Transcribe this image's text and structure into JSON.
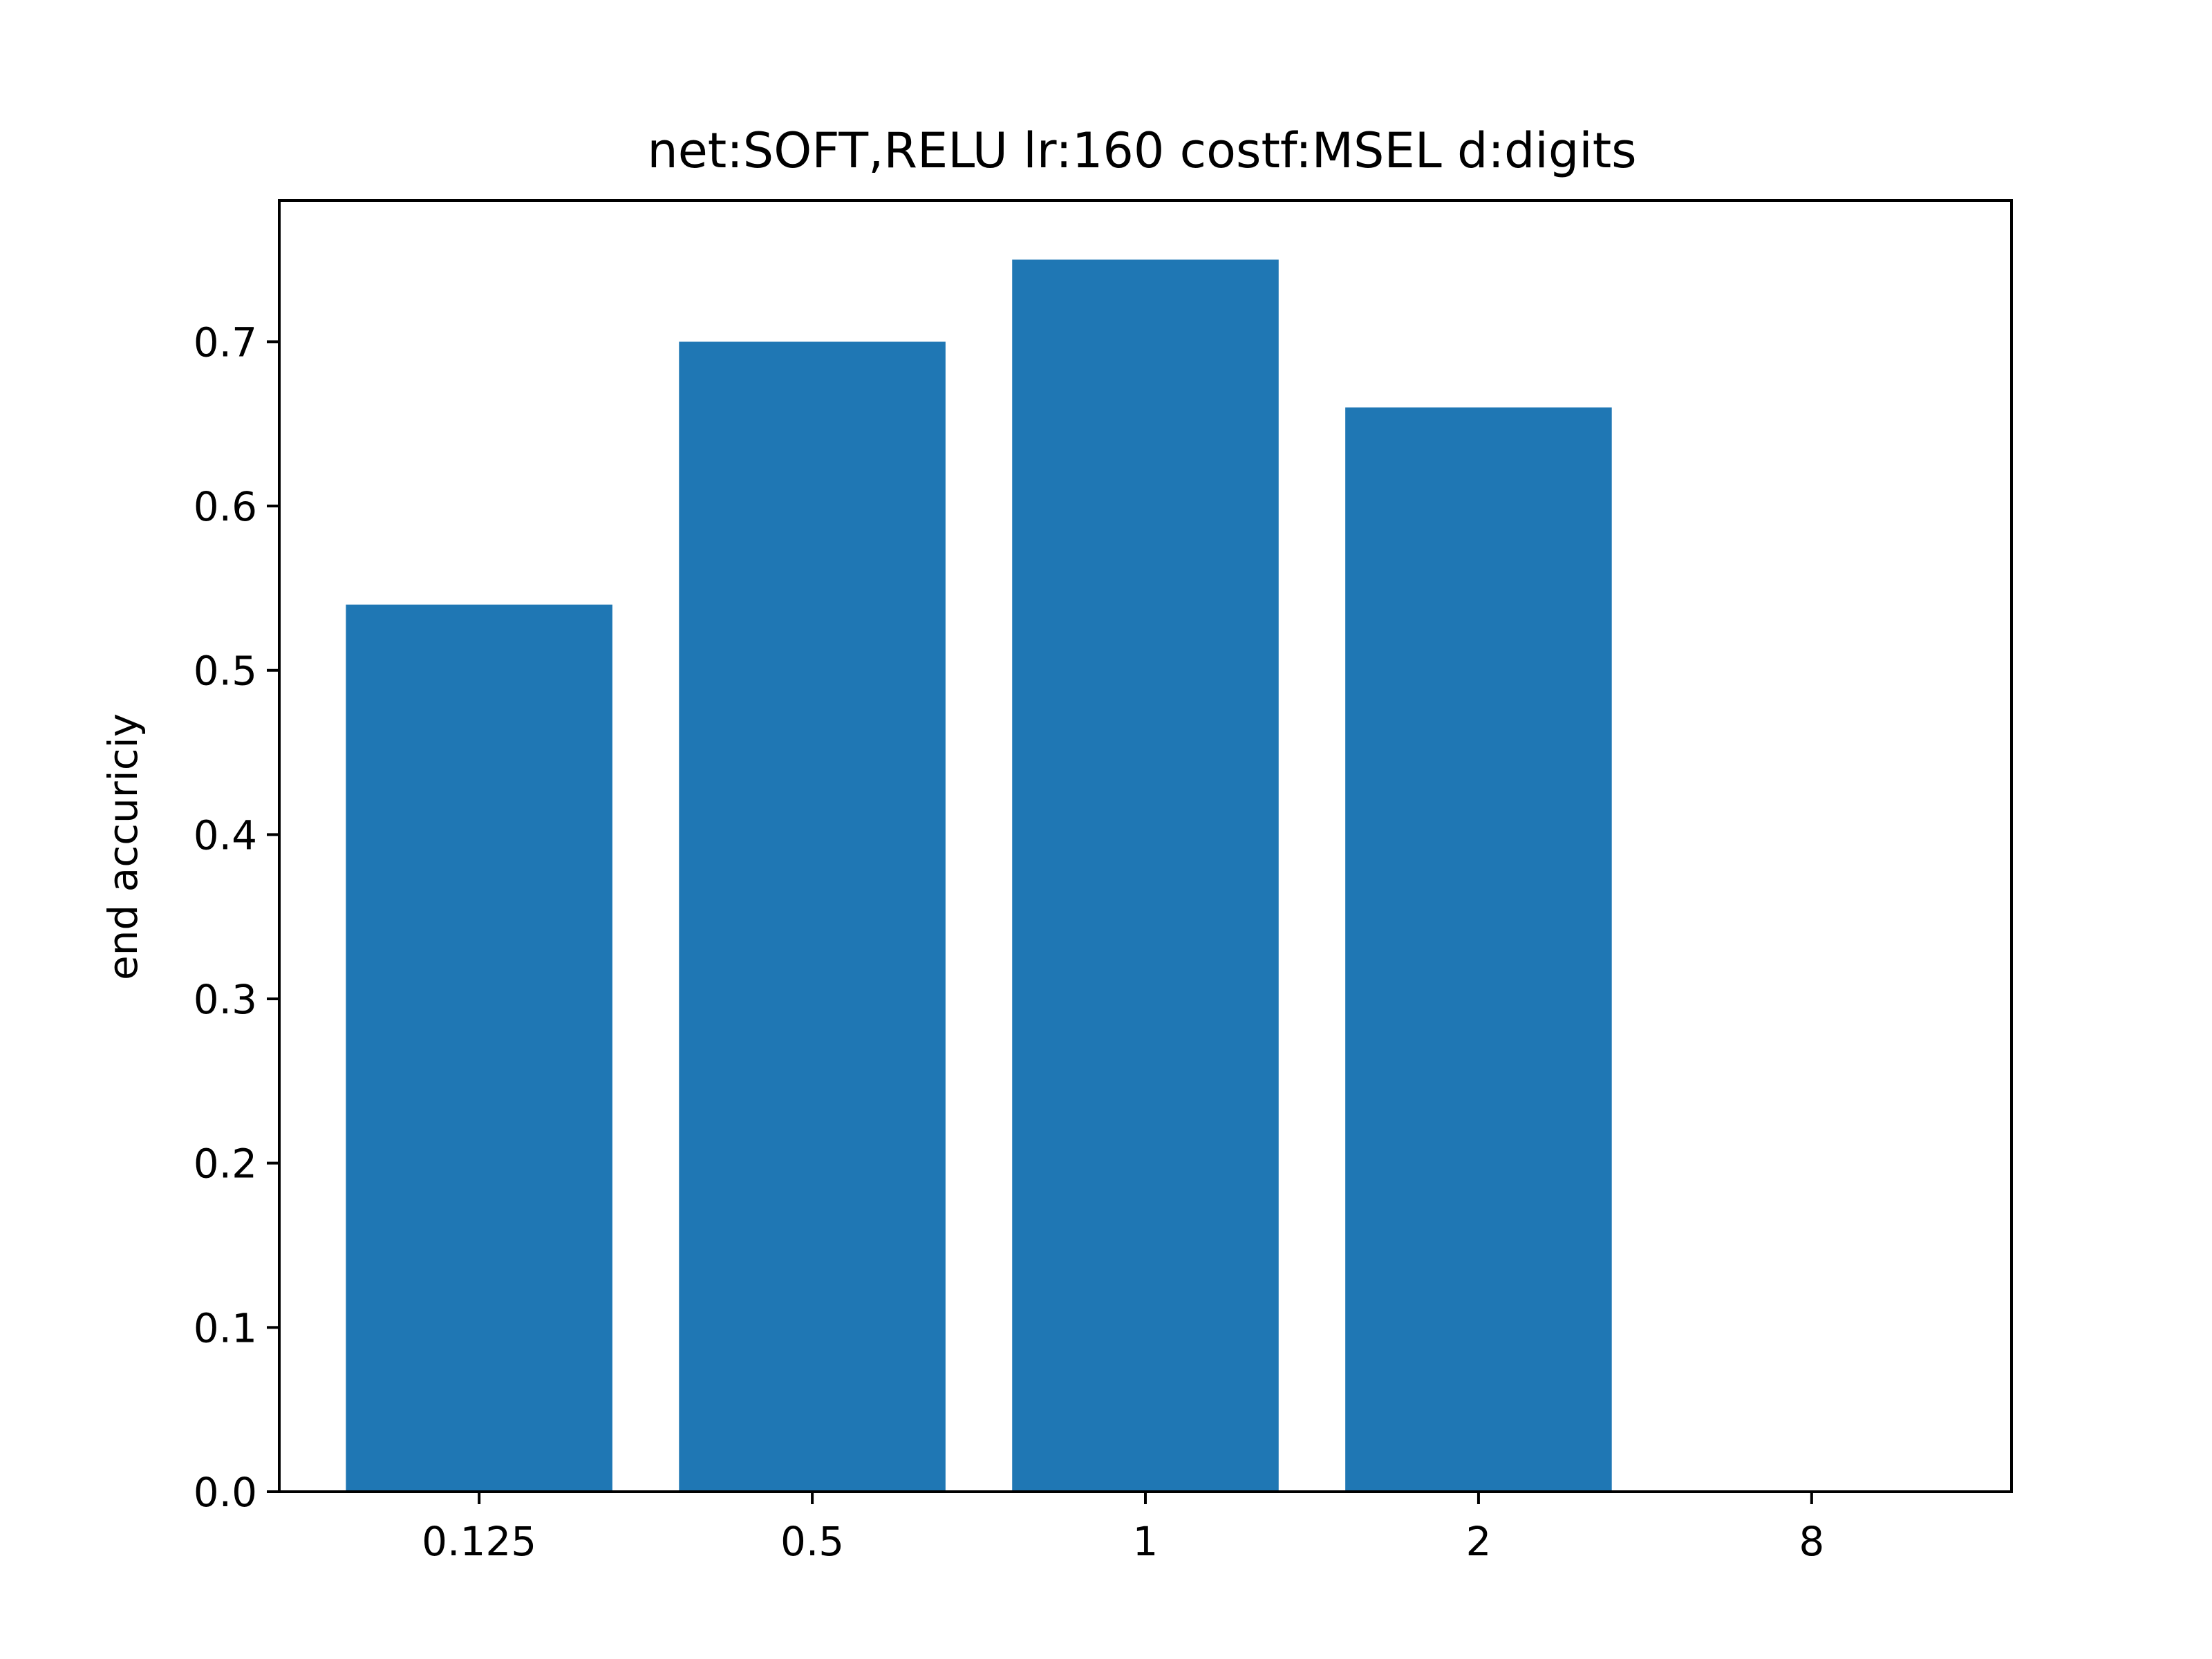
{
  "chart_data": {
    "type": "bar",
    "title": "net:SOFT,RELU lr:160 costf:MSEL d:digits",
    "xlabel": "",
    "ylabel": "end accuriciy",
    "categories": [
      "0.125",
      "0.5",
      "1",
      "2",
      "8"
    ],
    "values": [
      0.54,
      0.7,
      0.75,
      0.66,
      0.0
    ],
    "ylim": [
      0,
      0.786
    ],
    "yticks": [
      "0.0",
      "0.1",
      "0.2",
      "0.3",
      "0.4",
      "0.5",
      "0.6",
      "0.7"
    ],
    "bar_color": "#1f77b4",
    "grid": false,
    "legend": "none"
  }
}
